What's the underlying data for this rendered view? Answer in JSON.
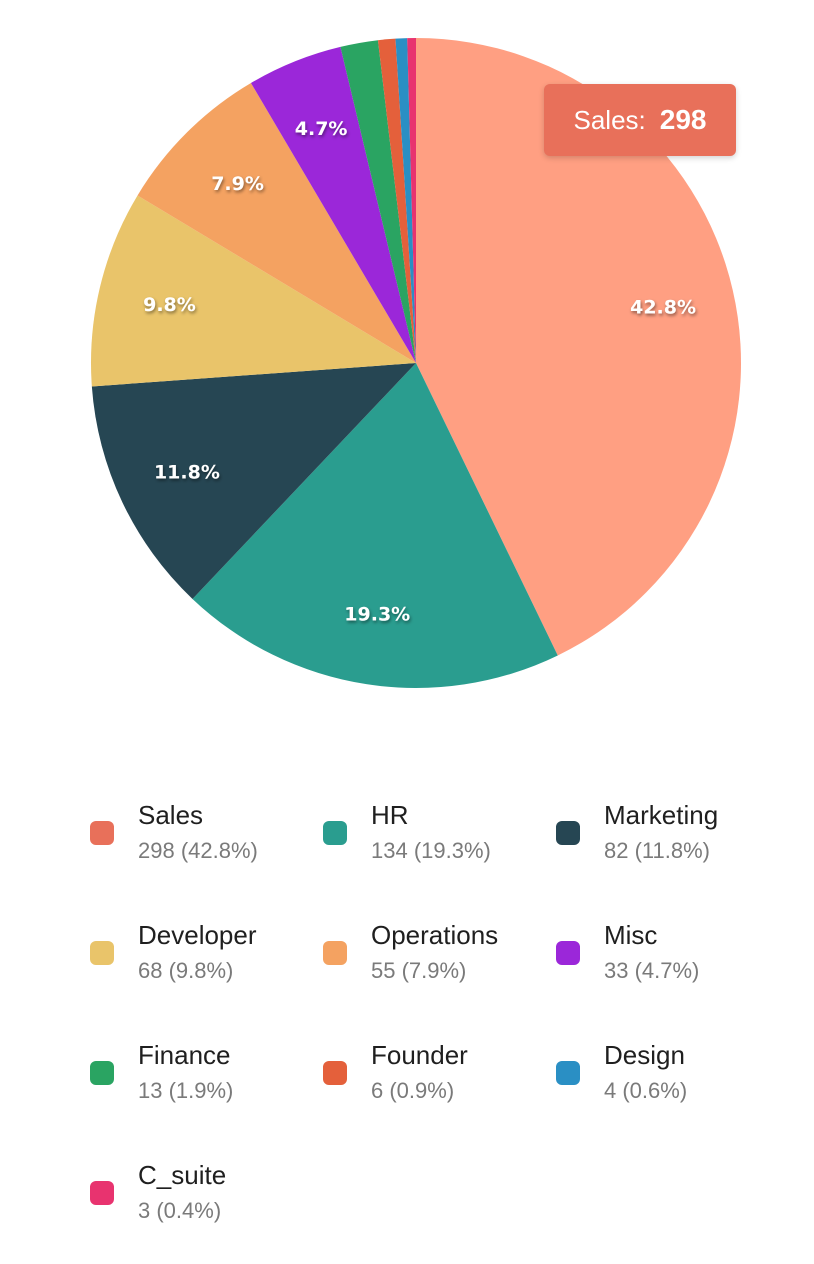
{
  "chart_data": {
    "type": "pie",
    "slices": [
      {
        "name": "Sales",
        "value": 298,
        "percent_label": "42.8%",
        "legend_value": "298 (42.8%)",
        "color": "#ff9f82"
      },
      {
        "name": "HR",
        "value": 134,
        "percent_label": "19.3%",
        "legend_value": "134 (19.3%)",
        "color": "#2a9d8f"
      },
      {
        "name": "Marketing",
        "value": 82,
        "percent_label": "11.8%",
        "legend_value": "82 (11.8%)",
        "color": "#264653"
      },
      {
        "name": "Developer",
        "value": 68,
        "percent_label": "9.8%",
        "legend_value": "68 (9.8%)",
        "color": "#e9c46a"
      },
      {
        "name": "Operations",
        "value": 55,
        "percent_label": "7.9%",
        "legend_value": "55 (7.9%)",
        "color": "#f4a261"
      },
      {
        "name": "Misc",
        "value": 33,
        "percent_label": "4.7%",
        "legend_value": "33 (4.7%)",
        "color": "#9b27d9"
      },
      {
        "name": "Finance",
        "value": 13,
        "percent_label": "1.9%",
        "legend_value": "13 (1.9%)",
        "color": "#2aa462"
      },
      {
        "name": "Founder",
        "value": 6,
        "percent_label": "0.9%",
        "legend_value": "6 (0.9%)",
        "color": "#e4603b"
      },
      {
        "name": "Design",
        "value": 4,
        "percent_label": "0.6%",
        "legend_value": "4 (0.6%)",
        "color": "#2a8fc4"
      },
      {
        "name": "C_suite",
        "value": 3,
        "percent_label": "0.4%",
        "legend_value": "3 (0.4%)",
        "color": "#e8336f"
      }
    ],
    "legend_swatch_colors": [
      "#e8705a",
      "#2a9d8f",
      "#264653",
      "#e9c46a",
      "#f4a261",
      "#9b27d9",
      "#2aa462",
      "#e4603b",
      "#2a8fc4",
      "#e8336f"
    ],
    "legend_placement": "bottom",
    "tooltip": {
      "label": "Sales:",
      "value": "298",
      "color": "#e8705a"
    }
  }
}
